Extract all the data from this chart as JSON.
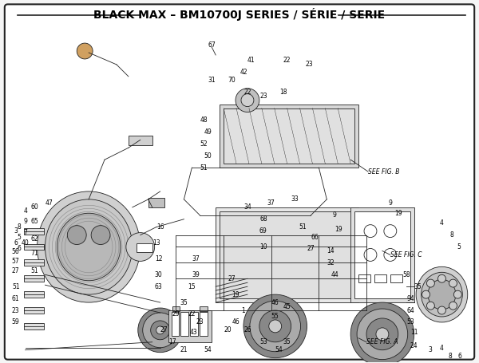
{
  "title": "BLACK MAX – BM10700J SERIES / SÉRIE / SERIE",
  "title_fontsize": 10,
  "bg_color": "#f5f5f5",
  "border_color": "#333333",
  "fig_width": 6.0,
  "fig_height": 4.55,
  "dpi": 100,
  "see_fig_a": "SEE FIG. A",
  "see_fig_b": "SEE FIG. B",
  "see_fig_c": "SEE FIG. C",
  "diagram_line_color": "#222222",
  "label_fontsize": 5.5
}
